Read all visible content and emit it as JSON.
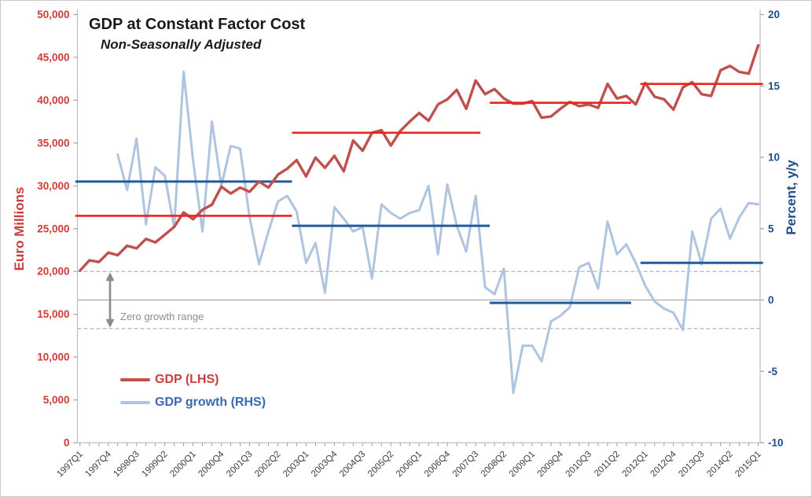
{
  "title": "GDP at Constant Factor Cost",
  "subtitle": "Non-Seasonally Adjusted",
  "left_axis": {
    "title": "Euro Millions",
    "min": 0,
    "max": 50000,
    "tick_step": 5000,
    "tick_labels": [
      "0",
      "5,000",
      "10,000",
      "15,000",
      "20,000",
      "25,000",
      "30,000",
      "35,000",
      "40,000",
      "45,000",
      "50,000"
    ],
    "text_color": "#CC3C39"
  },
  "right_axis": {
    "title": "Percent, y/y",
    "min": -10,
    "max": 20,
    "tick_step": 5,
    "tick_labels": [
      "-10",
      "-5",
      "0",
      "5",
      "10",
      "15",
      "20"
    ],
    "text_color": "#1F4E8C"
  },
  "x_axis": {
    "label_every": 3,
    "tick_labels": [
      "1997Q1",
      "1997Q4",
      "1998Q3",
      "1999Q2",
      "2000Q1",
      "2000Q4",
      "2001Q3",
      "2002Q2",
      "2003Q1",
      "2003Q4",
      "2004Q3",
      "2005Q2",
      "2006Q1",
      "2006Q4",
      "2007Q3",
      "2008Q2",
      "2009Q1",
      "2009Q4",
      "2010Q3",
      "2011Q2",
      "2012Q1",
      "2012Q4",
      "2013Q3",
      "2014Q2",
      "2015Q1"
    ],
    "text_color": "#3D3D3D"
  },
  "legend": {
    "items": [
      {
        "label": "GDP (LHS)",
        "swatch_color": "#C0504D",
        "label_color": "#C6403C"
      },
      {
        "label": "GDP growth (RHS)",
        "swatch_color": "#AFC4E1",
        "label_color": "#3A69B5"
      }
    ]
  },
  "annotation": {
    "text": "Zero growth range",
    "color": "#8C8C8C"
  },
  "colors": {
    "gdp": "#C0504D",
    "gdp_avg": "#E8251D",
    "growth": "#AFC4E1",
    "growth_avg": "#1F5B9E",
    "axis_line": "#BFBFBF",
    "tick_mark": "#A0A0A0",
    "zero_line": "#A6A6A6",
    "dashed_line": "#ABABAB",
    "arrow": "#8C8C8C"
  },
  "chart_data": {
    "type": "line",
    "title": "GDP at Constant Factor Cost",
    "subtitle": "Non-Seasonally Adjusted",
    "left_ylabel": "Euro Millions",
    "right_ylabel": "Percent, y/y",
    "left_ylim": [
      0,
      50000
    ],
    "right_ylim": [
      -10,
      20
    ],
    "grid": false,
    "legend_position": "lower-left",
    "x": [
      "1997Q1",
      "1997Q2",
      "1997Q3",
      "1997Q4",
      "1998Q1",
      "1998Q2",
      "1998Q3",
      "1998Q4",
      "1999Q1",
      "1999Q2",
      "1999Q3",
      "1999Q4",
      "2000Q1",
      "2000Q2",
      "2000Q3",
      "2000Q4",
      "2001Q1",
      "2001Q2",
      "2001Q3",
      "2001Q4",
      "2002Q1",
      "2002Q2",
      "2002Q3",
      "2002Q4",
      "2003Q1",
      "2003Q2",
      "2003Q3",
      "2003Q4",
      "2004Q1",
      "2004Q2",
      "2004Q3",
      "2004Q4",
      "2005Q1",
      "2005Q2",
      "2005Q3",
      "2005Q4",
      "2006Q1",
      "2006Q2",
      "2006Q3",
      "2006Q4",
      "2007Q1",
      "2007Q2",
      "2007Q3",
      "2007Q4",
      "2008Q1",
      "2008Q2",
      "2008Q3",
      "2008Q4",
      "2009Q1",
      "2009Q2",
      "2009Q3",
      "2009Q4",
      "2010Q1",
      "2010Q2",
      "2010Q3",
      "2010Q4",
      "2011Q1",
      "2011Q2",
      "2011Q3",
      "2011Q4",
      "2012Q1",
      "2012Q2",
      "2012Q3",
      "2012Q4",
      "2013Q1",
      "2013Q2",
      "2013Q3",
      "2013Q4",
      "2014Q1",
      "2014Q2",
      "2014Q3",
      "2014Q4",
      "2015Q1"
    ],
    "series": [
      {
        "name": "GDP (LHS)",
        "axis": "left",
        "color": "#C0504D",
        "values": [
          20100,
          21300,
          21100,
          22200,
          21900,
          23000,
          22700,
          23800,
          23400,
          24300,
          25200,
          26900,
          26100,
          27200,
          27800,
          29900,
          29100,
          29800,
          29300,
          30500,
          29800,
          31300,
          32000,
          33000,
          31100,
          33300,
          32100,
          33500,
          31700,
          35300,
          34100,
          36200,
          36500,
          34700,
          36400,
          37500,
          38500,
          37600,
          39500,
          40100,
          41200,
          39000,
          42300,
          40700,
          41300,
          40200,
          39600,
          39600,
          39900,
          37950,
          38100,
          39000,
          39800,
          39300,
          39500,
          39100,
          41900,
          40200,
          40500,
          39500,
          42000,
          40400,
          40100,
          38900,
          41500,
          42100,
          40700,
          40500,
          43500,
          44000,
          43300,
          43100,
          46400
        ]
      },
      {
        "name": "GDP growth (RHS)",
        "axis": "right",
        "color": "#AFC4E1",
        "values": [
          null,
          null,
          null,
          null,
          10.2,
          7.7,
          11.3,
          5.3,
          9.3,
          8.7,
          5.1,
          16.0,
          9.8,
          4.8,
          12.5,
          8.0,
          10.8,
          10.6,
          5.8,
          2.5,
          4.8,
          6.9,
          7.3,
          6.2,
          2.6,
          4.0,
          0.5,
          6.5,
          5.7,
          4.8,
          5.1,
          1.5,
          6.7,
          6.1,
          5.7,
          6.1,
          6.3,
          8.0,
          3.2,
          8.1,
          5.2,
          3.4,
          7.3,
          0.9,
          0.4,
          2.2,
          -6.5,
          -3.2,
          -3.2,
          -4.3,
          -1.5,
          -1.1,
          -0.5,
          2.3,
          2.6,
          0.8,
          5.5,
          3.2,
          3.9,
          2.6,
          1.0,
          -0.1,
          -0.6,
          -0.9,
          -2.1,
          4.8,
          2.5,
          5.7,
          6.4,
          4.3,
          5.8,
          6.8,
          6.7
        ]
      }
    ],
    "average_lines": [
      {
        "series": "GDP (LHS)",
        "axis": "left",
        "value": 26500,
        "from": "1997Q1",
        "to": "2002Q3",
        "color": "#E8251D"
      },
      {
        "series": "GDP (LHS)",
        "axis": "left",
        "value": 36200,
        "from": "2002Q4",
        "to": "2007Q3",
        "color": "#E8251D"
      },
      {
        "series": "GDP (LHS)",
        "axis": "left",
        "value": 39700,
        "from": "2008Q1",
        "to": "2011Q3",
        "color": "#E8251D"
      },
      {
        "series": "GDP (LHS)",
        "axis": "left",
        "value": 41900,
        "from": "2012Q1",
        "to": "2015Q1",
        "color": "#E8251D"
      },
      {
        "series": "GDP growth (RHS)",
        "axis": "right",
        "value": 8.3,
        "from": "1997Q1",
        "to": "2002Q3",
        "color": "#1F5B9E"
      },
      {
        "series": "GDP growth (RHS)",
        "axis": "right",
        "value": 5.2,
        "from": "2002Q4",
        "to": "2007Q4",
        "color": "#1F5B9E"
      },
      {
        "series": "GDP growth (RHS)",
        "axis": "right",
        "value": -0.2,
        "from": "2008Q1",
        "to": "2011Q3",
        "color": "#1F5B9E"
      },
      {
        "series": "GDP growth (RHS)",
        "axis": "right",
        "value": 2.6,
        "from": "2012Q1",
        "to": "2015Q1",
        "color": "#1F5B9E"
      }
    ],
    "reference_lines": {
      "zero_pct": 0,
      "upper_dashed_pct": 2,
      "lower_dashed_pct": -2
    }
  }
}
